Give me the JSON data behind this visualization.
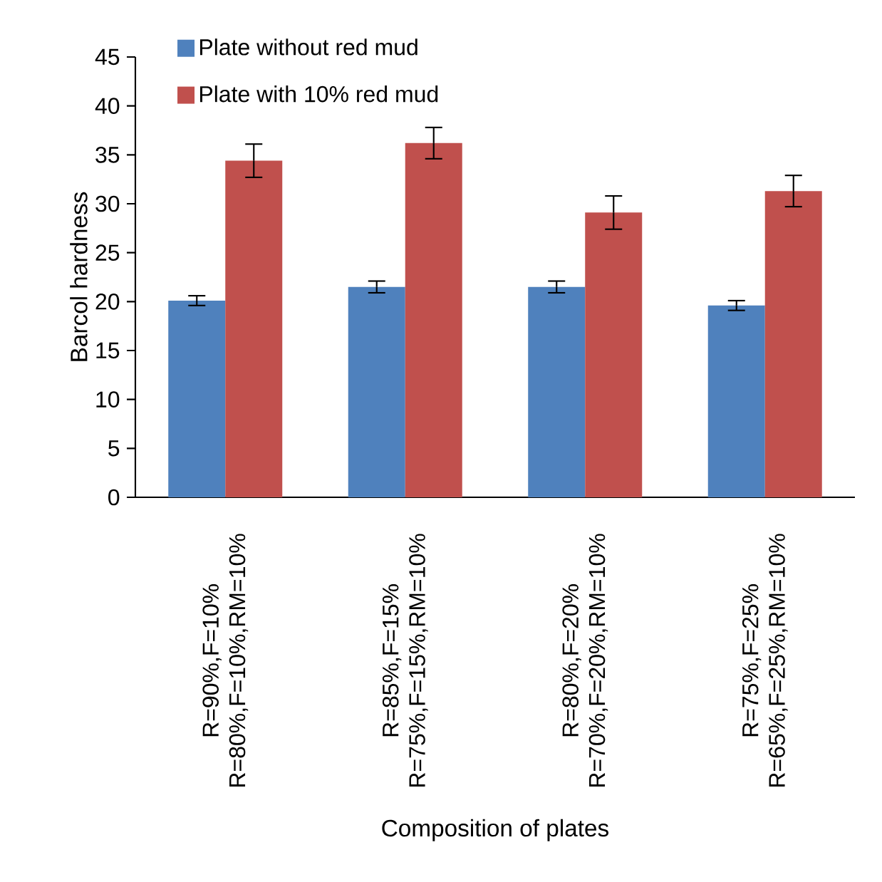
{
  "chart_data": {
    "type": "bar",
    "xlabel": "Composition of plates",
    "ylabel": "Barcol hardness",
    "categories": [
      "R=90%,F=10% R=80%,F=10%,RM=10%",
      "R=85%,F=15% R=75%,F=15%,RM=10%",
      "R=80%,F=20% R=70%,F=20%,RM=10%",
      "R=75%,F=25% R=65%,F=25%,RM=10%"
    ],
    "series": [
      {
        "name": "Plate without red mud",
        "color": "#4f81bd",
        "values": [
          20.1,
          21.5,
          21.5,
          19.6
        ],
        "errors": [
          0.5,
          0.6,
          0.6,
          0.5
        ]
      },
      {
        "name": "Plate with 10% red mud",
        "color": "#c0504d",
        "values": [
          34.4,
          36.2,
          29.1,
          31.3
        ],
        "errors": [
          1.7,
          1.6,
          1.7,
          1.6
        ]
      }
    ],
    "ylim": [
      0,
      45
    ],
    "yticks": [
      0,
      5,
      10,
      15,
      20,
      25,
      30,
      35,
      40,
      45
    ],
    "grid": false,
    "legend": "top left"
  }
}
